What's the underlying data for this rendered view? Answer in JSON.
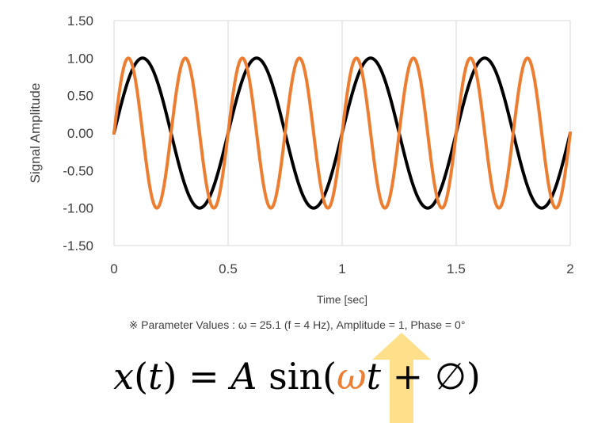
{
  "chart_data": {
    "type": "line",
    "title": "",
    "xlabel": "Time [sec]",
    "ylabel": "Signal Amplitude",
    "xlim": [
      0,
      2
    ],
    "ylim": [
      -1.5,
      1.5
    ],
    "x_ticks": [
      "0",
      "0.5",
      "1",
      "1.5",
      "2"
    ],
    "y_ticks": [
      "1.50",
      "1.00",
      "0.50",
      "0.00",
      "-0.50",
      "-1.00",
      "-1.50"
    ],
    "grid": "vertical",
    "legend": "none",
    "series": [
      {
        "color": "#000000",
        "function": "sin",
        "amplitude": 1,
        "frequency_hz": 2,
        "phase_deg": 0,
        "x": [
          0,
          0.125,
          0.25,
          0.375,
          0.5,
          0.625,
          0.75,
          0.875,
          1,
          1.125,
          1.25,
          1.375,
          1.5,
          1.625,
          1.75,
          1.875,
          2
        ],
        "values": [
          0,
          1,
          0,
          -1,
          0,
          1,
          0,
          -1,
          0,
          1,
          0,
          -1,
          0,
          1,
          0,
          -1,
          0
        ]
      },
      {
        "color": "#ED7D31",
        "function": "sin",
        "amplitude": 1,
        "frequency_hz": 4,
        "phase_deg": 0,
        "x": [
          0,
          0.0625,
          0.125,
          0.1875,
          0.25,
          0.3125,
          0.375,
          0.4375,
          0.5,
          0.5625,
          0.625,
          0.6875,
          0.75,
          0.8125,
          0.875,
          0.9375,
          1,
          1.0625,
          1.125,
          1.1875,
          1.25,
          1.3125,
          1.375,
          1.4375,
          1.5,
          1.5625,
          1.625,
          1.6875,
          1.75,
          1.8125,
          1.875,
          1.9375,
          2
        ],
        "values": [
          0,
          1,
          0,
          -1,
          0,
          1,
          0,
          -1,
          0,
          1,
          0,
          -1,
          0,
          1,
          0,
          -1,
          0,
          1,
          0,
          -1,
          0,
          1,
          0,
          -1,
          0,
          1,
          0,
          -1,
          0,
          1,
          0,
          -1,
          0
        ]
      }
    ]
  },
  "note": "※ Parameter Values : ω = 25.1 (f = 4 Hz), Amplitude = 1, Phase = 0°",
  "formula": {
    "x": "x",
    "t1": "t",
    "eq": ") = ",
    "A": "A",
    "sin": " sin(",
    "omega": "ω",
    "t2": "t",
    "plus": " + ∅)"
  },
  "colors": {
    "highlight": "#ED7D31",
    "arrow": "#FFE08A",
    "grid": "#D9D9D9"
  },
  "icons": {
    "pointer": "up-arrow-icon"
  }
}
